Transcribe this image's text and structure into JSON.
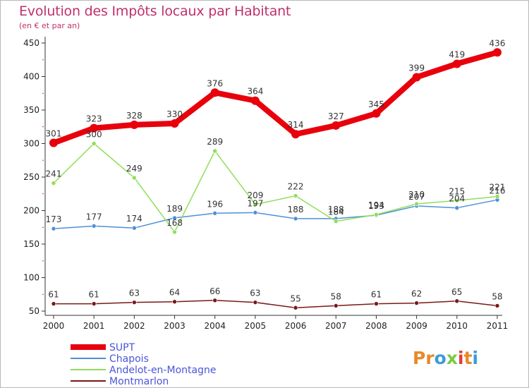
{
  "chart_data": {
    "type": "line",
    "title": "Evolution des Impôts locaux par Habitant",
    "subtitle": "(en € et par an)",
    "xlabel": "",
    "ylabel": "",
    "categories": [
      "2000",
      "2001",
      "2002",
      "2003",
      "2004",
      "2005",
      "2006",
      "2007",
      "2008",
      "2009",
      "2010",
      "2011"
    ],
    "ylim": [
      50,
      460
    ],
    "yticks": [
      50,
      100,
      150,
      200,
      250,
      300,
      350,
      400,
      450
    ],
    "grid": false,
    "legend_position": "bottom-left",
    "series": [
      {
        "name": "SUPT",
        "color": "#e8000c",
        "values": [
          301,
          323,
          328,
          330,
          376,
          364,
          314,
          327,
          345,
          399,
          419,
          436
        ]
      },
      {
        "name": "Chapois",
        "color": "#4f8fd8",
        "values": [
          173,
          177,
          174,
          189,
          196,
          197,
          188,
          188,
          193,
          207,
          204,
          216
        ]
      },
      {
        "name": "Andelot-en-Montagne",
        "color": "#8fdf5a",
        "values": [
          241,
          300,
          249,
          168,
          289,
          209,
          222,
          184,
          194,
          210,
          215,
          221
        ]
      },
      {
        "name": "Montmarlon",
        "color": "#7a1818",
        "values": [
          61,
          61,
          63,
          64,
          66,
          63,
          55,
          58,
          61,
          62,
          65,
          58
        ]
      }
    ]
  },
  "logo": {
    "text": "Proxiti"
  }
}
